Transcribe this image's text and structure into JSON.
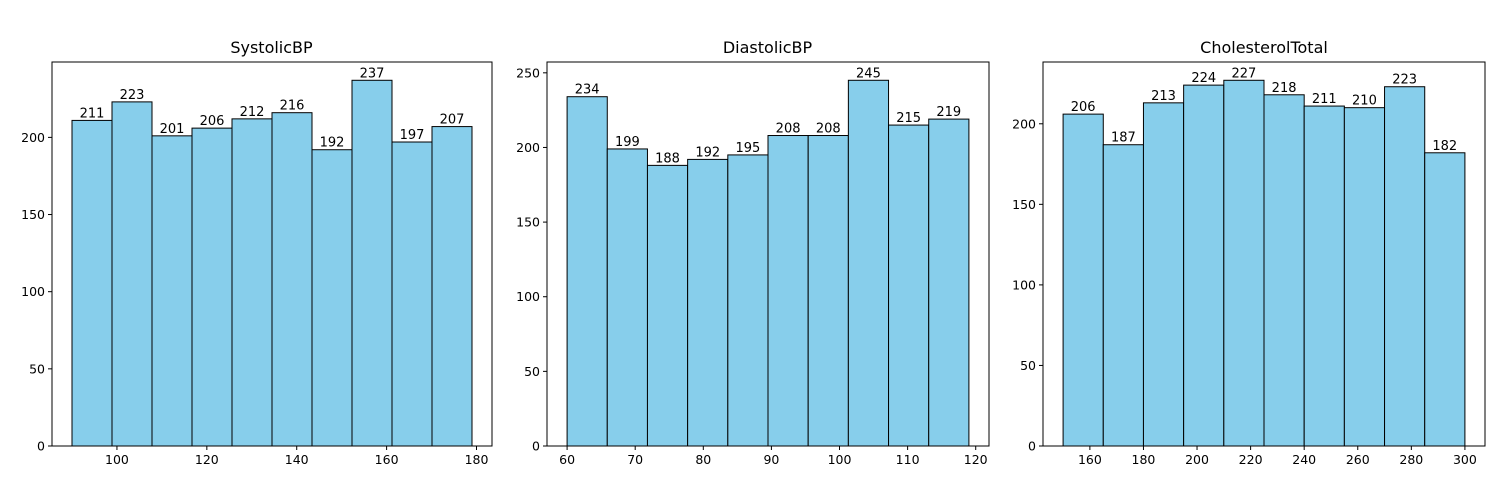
{
  "colors": {
    "bar_fill": "#87ceeb",
    "bar_edge": "#000000",
    "axis": "#000000",
    "background": "#ffffff"
  },
  "chart_data": [
    {
      "type": "bar",
      "title": "SystolicBP",
      "bin_edges": [
        90,
        98.9,
        107.8,
        116.7,
        125.6,
        134.5,
        143.4,
        152.3,
        161.2,
        170.1,
        179
      ],
      "values": [
        211,
        223,
        201,
        206,
        212,
        216,
        192,
        237,
        197,
        207
      ],
      "xlim": [
        85.55,
        183.45
      ],
      "ylim": [
        0,
        248.85
      ],
      "xticks": [
        100,
        120,
        140,
        160,
        180
      ],
      "yticks": [
        0,
        50,
        100,
        150,
        200
      ],
      "xlabel": "",
      "ylabel": "",
      "grid": false
    },
    {
      "type": "bar",
      "title": "DiastolicBP",
      "bin_edges": [
        60,
        65.9,
        71.8,
        77.7,
        83.6,
        89.5,
        95.4,
        101.3,
        107.2,
        113.1,
        119
      ],
      "values": [
        234,
        199,
        188,
        192,
        195,
        208,
        208,
        245,
        215,
        219
      ],
      "xlim": [
        57.05,
        121.95
      ],
      "ylim": [
        0,
        257.25
      ],
      "xticks": [
        60,
        70,
        80,
        90,
        100,
        110,
        120
      ],
      "yticks": [
        0,
        50,
        100,
        150,
        200,
        250
      ],
      "xlabel": "",
      "ylabel": "",
      "grid": false
    },
    {
      "type": "bar",
      "title": "CholesterolTotal",
      "bin_edges": [
        150,
        165,
        180,
        195,
        210,
        225,
        240,
        255,
        270,
        285,
        300
      ],
      "values": [
        206,
        187,
        213,
        224,
        227,
        218,
        211,
        210,
        223,
        182
      ],
      "xlim": [
        142.5,
        307.5
      ],
      "ylim": [
        0,
        238.35
      ],
      "xticks": [
        160,
        180,
        200,
        220,
        240,
        260,
        280,
        300
      ],
      "yticks": [
        0,
        50,
        100,
        150,
        200
      ],
      "xlabel": "",
      "ylabel": "",
      "grid": false
    }
  ]
}
